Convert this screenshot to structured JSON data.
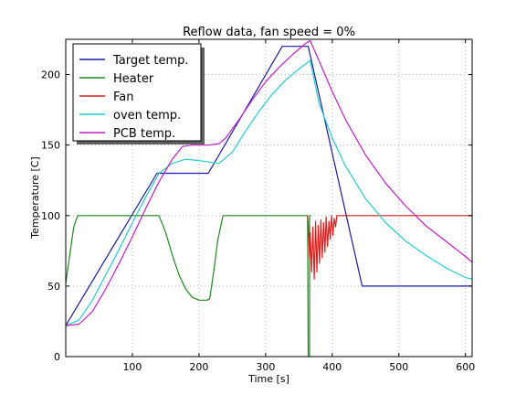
{
  "chart_data": {
    "type": "line",
    "title": "Reflow data, fan speed = 0%",
    "xlabel": "Time [s]",
    "ylabel": "Temperature [C]",
    "xlim": [
      0,
      610
    ],
    "ylim": [
      0,
      225
    ],
    "xticks": [
      100,
      200,
      300,
      400,
      500,
      600
    ],
    "yticks": [
      0,
      50,
      100,
      150,
      200
    ],
    "grid": true,
    "legend_position": "top-left",
    "series": [
      {
        "name": "Target temp.",
        "color": "#1a1aa8",
        "points": [
          [
            0,
            22
          ],
          [
            137,
            130
          ],
          [
            214,
            130
          ],
          [
            325,
            220
          ],
          [
            364,
            220
          ],
          [
            445,
            50
          ],
          [
            610,
            50
          ]
        ]
      },
      {
        "name": "Heater",
        "color": "#1e8a1e",
        "points": [
          [
            0,
            52
          ],
          [
            6,
            72
          ],
          [
            12,
            92
          ],
          [
            18,
            100
          ],
          [
            140,
            100
          ],
          [
            150,
            88
          ],
          [
            160,
            72
          ],
          [
            170,
            58
          ],
          [
            180,
            48
          ],
          [
            190,
            42
          ],
          [
            200,
            40
          ],
          [
            212,
            40
          ],
          [
            216,
            41
          ],
          [
            222,
            60
          ],
          [
            228,
            82
          ],
          [
            236,
            100
          ],
          [
            363,
            100
          ],
          [
            364,
            0
          ],
          [
            366,
            0
          ],
          [
            366,
            100
          ],
          [
            368,
            100
          ]
        ]
      },
      {
        "name": "Fan",
        "color": "#dd2020",
        "points": [
          [
            363,
            100
          ],
          [
            364,
            95
          ],
          [
            366,
            70
          ],
          [
            367,
            88
          ],
          [
            369,
            60
          ],
          [
            371,
            92
          ],
          [
            373,
            55
          ],
          [
            375,
            96
          ],
          [
            377,
            60
          ],
          [
            379,
            93
          ],
          [
            381,
            66
          ],
          [
            383,
            97
          ],
          [
            385,
            70
          ],
          [
            387,
            95
          ],
          [
            389,
            74
          ],
          [
            391,
            99
          ],
          [
            393,
            78
          ],
          [
            395,
            96
          ],
          [
            397,
            83
          ],
          [
            399,
            100
          ],
          [
            401,
            86
          ],
          [
            403,
            98
          ],
          [
            405,
            92
          ],
          [
            407,
            100
          ],
          [
            410,
            100
          ],
          [
            610,
            100
          ]
        ]
      },
      {
        "name": "oven temp.",
        "color": "#22cccc",
        "points": [
          [
            0,
            22
          ],
          [
            20,
            26
          ],
          [
            40,
            40
          ],
          [
            60,
            58
          ],
          [
            80,
            76
          ],
          [
            100,
            95
          ],
          [
            120,
            113
          ],
          [
            140,
            130
          ],
          [
            160,
            137
          ],
          [
            180,
            140
          ],
          [
            200,
            139
          ],
          [
            215,
            138
          ],
          [
            230,
            137
          ],
          [
            250,
            145
          ],
          [
            270,
            160
          ],
          [
            290,
            174
          ],
          [
            310,
            186
          ],
          [
            330,
            196
          ],
          [
            350,
            204
          ],
          [
            367,
            210
          ],
          [
            380,
            180
          ],
          [
            400,
            155
          ],
          [
            420,
            135
          ],
          [
            450,
            112
          ],
          [
            480,
            95
          ],
          [
            510,
            82
          ],
          [
            540,
            72
          ],
          [
            570,
            63
          ],
          [
            600,
            56
          ],
          [
            610,
            55
          ]
        ]
      },
      {
        "name": "PCB temp.",
        "color": "#c41cc4",
        "points": [
          [
            0,
            22
          ],
          [
            20,
            23
          ],
          [
            40,
            32
          ],
          [
            60,
            48
          ],
          [
            80,
            66
          ],
          [
            100,
            85
          ],
          [
            120,
            105
          ],
          [
            140,
            124
          ],
          [
            160,
            140
          ],
          [
            175,
            149
          ],
          [
            190,
            150
          ],
          [
            215,
            150
          ],
          [
            230,
            151
          ],
          [
            240,
            155
          ],
          [
            260,
            168
          ],
          [
            280,
            182
          ],
          [
            300,
            195
          ],
          [
            320,
            205
          ],
          [
            340,
            214
          ],
          [
            360,
            222
          ],
          [
            367,
            224
          ],
          [
            380,
            210
          ],
          [
            400,
            188
          ],
          [
            420,
            168
          ],
          [
            450,
            143
          ],
          [
            480,
            123
          ],
          [
            510,
            107
          ],
          [
            540,
            93
          ],
          [
            570,
            82
          ],
          [
            600,
            71
          ],
          [
            610,
            67
          ]
        ]
      }
    ]
  }
}
